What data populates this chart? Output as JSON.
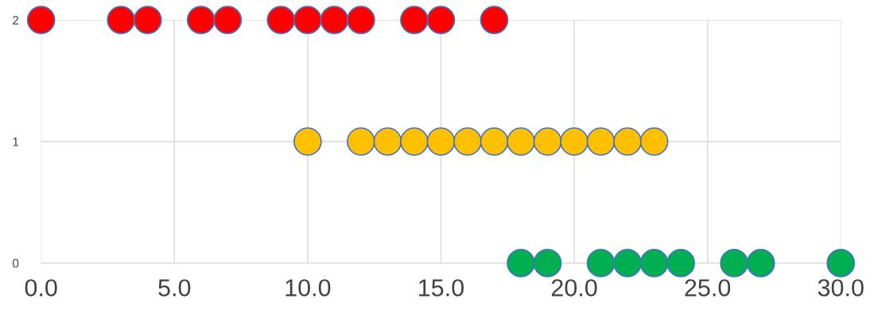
{
  "chart_data": {
    "type": "scatter",
    "series": [
      {
        "color": "#ff0000",
        "x": [
          0,
          3,
          4,
          6,
          7,
          9,
          10,
          11,
          12,
          14,
          15,
          17
        ],
        "values": [
          2,
          2,
          2,
          2,
          2,
          2,
          2,
          2,
          2,
          2,
          2,
          2
        ]
      },
      {
        "color": "#ffc000",
        "x": [
          10,
          12,
          13,
          14,
          15,
          16,
          17,
          18,
          19,
          20,
          21,
          22,
          23
        ],
        "values": [
          1,
          1,
          1,
          1,
          1,
          1,
          1,
          1,
          1,
          1,
          1,
          1,
          1
        ]
      },
      {
        "color": "#00b050",
        "x": [
          18,
          19,
          21,
          22,
          23,
          24,
          26,
          27,
          30
        ],
        "values": [
          0,
          0,
          0,
          0,
          0,
          0,
          0,
          0,
          0
        ]
      }
    ],
    "xlim": [
      0,
      30
    ],
    "xticks": [
      {
        "value": 0,
        "label": "0.0"
      },
      {
        "value": 5,
        "label": "5.0"
      },
      {
        "value": 10,
        "label": "10.0"
      },
      {
        "value": 15,
        "label": "15.0"
      },
      {
        "value": 20,
        "label": "20.0"
      },
      {
        "value": 25,
        "label": "25.0"
      },
      {
        "value": 30,
        "label": "30.0"
      }
    ],
    "ylim": [
      0,
      2
    ],
    "yticks": [
      0,
      1,
      2
    ],
    "grid": true,
    "marker": "circle",
    "legend": false
  }
}
